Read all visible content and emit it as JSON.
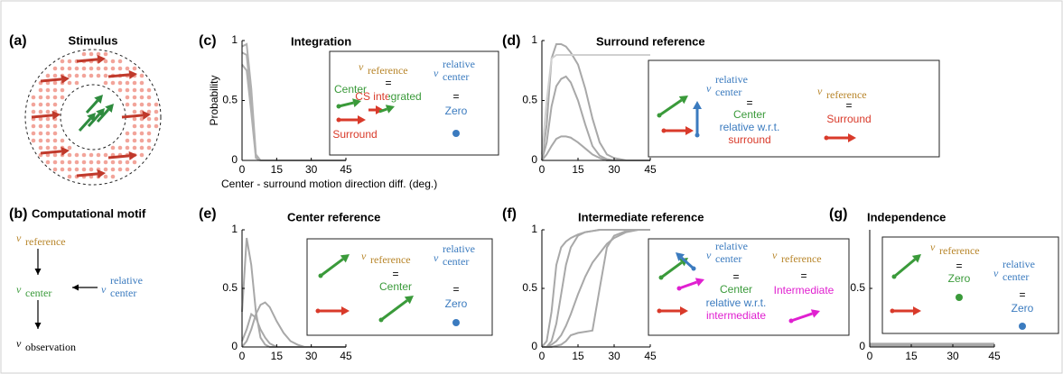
{
  "notation": {
    "v": "v",
    "reference": "reference",
    "center": "center",
    "relative": "relative",
    "observation": "observation",
    "equals": "="
  },
  "panel_a": {
    "label": "(a)",
    "title": "Stimulus"
  },
  "panel_b": {
    "label": "(b)",
    "title": "Computational motif"
  },
  "chart_data": [
    {
      "type": "line",
      "label": "(c)",
      "title": "Integration",
      "ylabel": "Probability",
      "xlabel": "Center - surround motion direction diff. (deg.)",
      "x": [
        0,
        2,
        4,
        6,
        8,
        10,
        12,
        15,
        18,
        21,
        24,
        27,
        30,
        35,
        40,
        45
      ],
      "xlim": [
        0,
        45
      ],
      "ylim": [
        0,
        1
      ],
      "xticks": [
        0,
        15,
        30,
        45
      ],
      "yticks": [
        0,
        0.5,
        1
      ],
      "series": [
        {
          "color": "#b0b0b0",
          "values": [
            0.95,
            0.97,
            0.6,
            0.05,
            0,
            0,
            0,
            0,
            0,
            0,
            0,
            0,
            0,
            0,
            0,
            0
          ]
        },
        {
          "color": "#b0b0b0",
          "values": [
            0.9,
            0.88,
            0.5,
            0.03,
            0,
            0,
            0,
            0,
            0,
            0,
            0,
            0,
            0,
            0,
            0,
            0
          ]
        },
        {
          "color": "#b0b0b0",
          "values": [
            0.8,
            0.75,
            0.4,
            0.02,
            0,
            0,
            0,
            0,
            0,
            0,
            0,
            0,
            0,
            0,
            0,
            0
          ]
        }
      ],
      "inset": {
        "center": "Center",
        "surround": "Surround",
        "cs_integrated": "CS integrated",
        "zero": "Zero"
      }
    },
    {
      "type": "line",
      "label": "(d)",
      "title": "Surround reference",
      "x": [
        0,
        2,
        4,
        6,
        8,
        10,
        12,
        15,
        18,
        21,
        24,
        27,
        30,
        35,
        40,
        45
      ],
      "xlim": [
        0,
        45
      ],
      "ylim": [
        0,
        1
      ],
      "xticks": [
        0,
        15,
        30,
        45
      ],
      "yticks": [
        0,
        0.5,
        1
      ],
      "series": [
        {
          "color": "#a8a8a8",
          "values": [
            0,
            0.3,
            0.85,
            0.97,
            0.97,
            0.95,
            0.9,
            0.8,
            0.6,
            0.35,
            0.15,
            0.05,
            0.02,
            0,
            0,
            0
          ]
        },
        {
          "color": "#a8a8a8",
          "values": [
            0,
            0.15,
            0.45,
            0.62,
            0.68,
            0.7,
            0.65,
            0.5,
            0.3,
            0.12,
            0.04,
            0.01,
            0,
            0,
            0,
            0
          ]
        },
        {
          "color": "#a8a8a8",
          "values": [
            0,
            0.05,
            0.12,
            0.18,
            0.2,
            0.2,
            0.19,
            0.15,
            0.1,
            0.05,
            0.02,
            0,
            0,
            0,
            0,
            0
          ]
        },
        {
          "color": "#d0d0d0",
          "values": [
            0.05,
            0.5,
            0.85,
            0.88,
            0.88,
            0.88,
            0.88,
            0.88,
            0.88,
            0.88,
            0.88,
            0.88,
            0.88,
            0.88,
            0.88,
            0.88
          ]
        }
      ],
      "inset": {
        "center": "Center",
        "relative_wrt": "relative w.r.t.",
        "surround_lower": "surround",
        "surround": "Surround"
      }
    },
    {
      "type": "line",
      "label": "(e)",
      "title": "Center reference",
      "x": [
        0,
        2,
        4,
        6,
        8,
        10,
        12,
        15,
        18,
        21,
        24,
        27,
        30,
        35,
        40,
        45
      ],
      "xlim": [
        0,
        45
      ],
      "ylim": [
        0,
        1
      ],
      "xticks": [
        0,
        15,
        30,
        45
      ],
      "yticks": [
        0,
        0.5,
        1
      ],
      "series": [
        {
          "color": "#a8a8a8",
          "values": [
            0.3,
            0.93,
            0.7,
            0.3,
            0.08,
            0.02,
            0,
            0,
            0,
            0,
            0,
            0,
            0,
            0,
            0,
            0
          ]
        },
        {
          "color": "#a8a8a8",
          "values": [
            0,
            0.05,
            0.15,
            0.28,
            0.36,
            0.38,
            0.34,
            0.22,
            0.12,
            0.05,
            0.02,
            0,
            0,
            0,
            0,
            0
          ]
        },
        {
          "color": "#a8a8a8",
          "values": [
            0.05,
            0.15,
            0.28,
            0.25,
            0.15,
            0.08,
            0.03,
            0,
            0,
            0,
            0,
            0,
            0,
            0,
            0,
            0
          ]
        }
      ],
      "inset": {
        "center": "Center",
        "zero": "Zero"
      }
    },
    {
      "type": "line",
      "label": "(f)",
      "title": "Intermediate reference",
      "x": [
        0,
        2,
        4,
        6,
        8,
        10,
        12,
        15,
        18,
        21,
        24,
        27,
        30,
        35,
        40,
        45
      ],
      "xlim": [
        0,
        45
      ],
      "ylim": [
        0,
        1
      ],
      "xticks": [
        0,
        15,
        30,
        45
      ],
      "yticks": [
        0,
        0.5,
        1
      ],
      "series": [
        {
          "color": "#a8a8a8",
          "values": [
            0,
            0.05,
            0.3,
            0.7,
            0.85,
            0.9,
            0.93,
            0.96,
            0.98,
            0.99,
            1,
            1,
            1,
            1,
            1,
            1
          ]
        },
        {
          "color": "#a8a8a8",
          "values": [
            0,
            0,
            0.05,
            0.2,
            0.45,
            0.7,
            0.85,
            0.95,
            0.98,
            0.99,
            1,
            1,
            1,
            1,
            1,
            1
          ]
        },
        {
          "color": "#a8a8a8",
          "values": [
            0,
            0,
            0.02,
            0.05,
            0.1,
            0.18,
            0.28,
            0.45,
            0.6,
            0.72,
            0.8,
            0.88,
            0.93,
            0.98,
            1,
            1
          ]
        },
        {
          "color": "#a8a8a8",
          "values": [
            0,
            0,
            0,
            0.01,
            0.02,
            0.05,
            0.1,
            0.12,
            0.13,
            0.14,
            0.5,
            0.85,
            0.95,
            0.99,
            1,
            1
          ]
        }
      ],
      "inset": {
        "center": "Center",
        "relative_wrt": "relative w.r.t.",
        "intermediate_lower": "intermediate",
        "intermediate": "Intermediate"
      }
    },
    {
      "type": "line",
      "label": "(g)",
      "title": "Independence",
      "x": [
        0,
        2,
        4,
        6,
        8,
        10,
        12,
        15,
        18,
        21,
        24,
        27,
        30,
        35,
        40,
        45
      ],
      "xlim": [
        0,
        45
      ],
      "ylim": [
        0,
        1
      ],
      "xticks": [
        0,
        15,
        30,
        45
      ],
      "yticks": [
        0,
        0.5
      ],
      "series": [
        {
          "color": "#a8a8a8",
          "values": [
            0.02,
            0.02,
            0.02,
            0.02,
            0.02,
            0.02,
            0.02,
            0.02,
            0.02,
            0.02,
            0.02,
            0.02,
            0.02,
            0.02,
            0.02,
            0.02
          ]
        }
      ],
      "inset": {
        "zero_ref": "Zero",
        "zero": "Zero"
      }
    }
  ]
}
